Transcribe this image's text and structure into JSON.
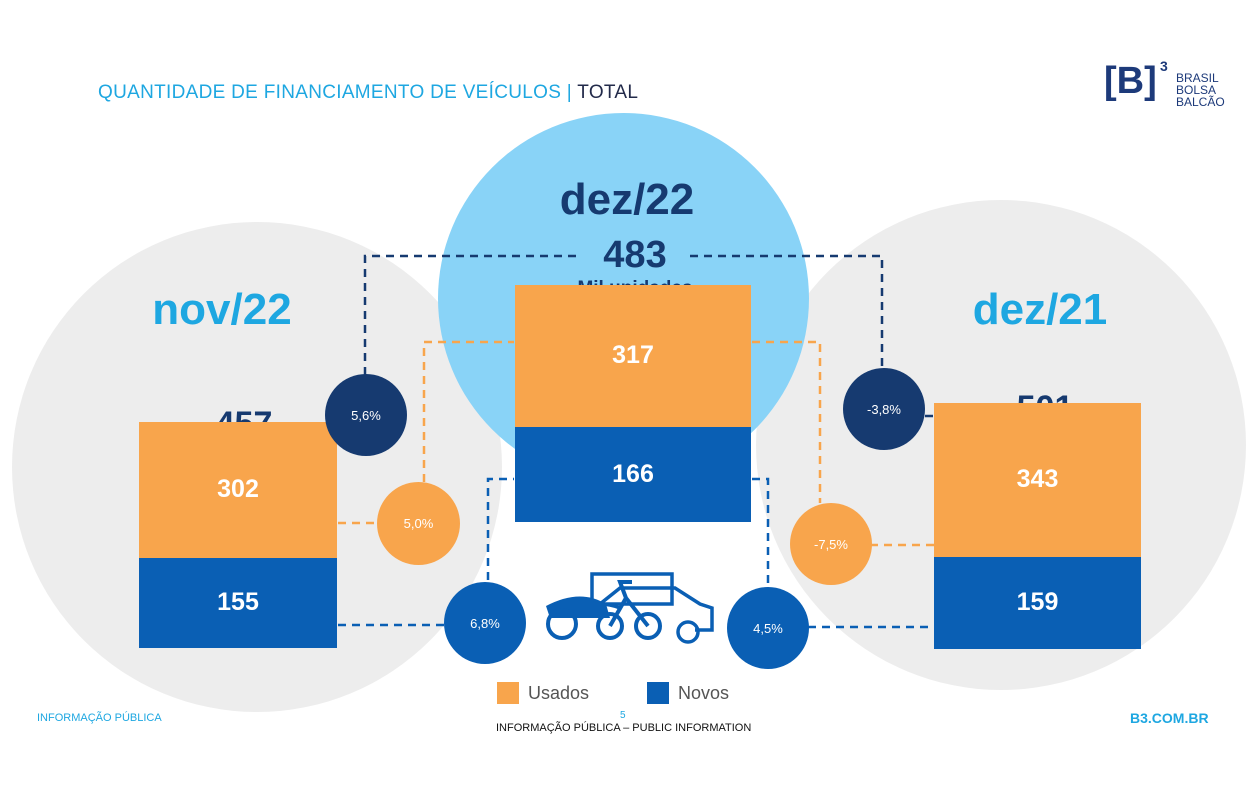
{
  "title": {
    "main": "QUANTIDADE DE FINANCIAMENTO DE VEÍCULOS |",
    "sub": " TOTAL"
  },
  "logo": {
    "mark": "[B]",
    "sup": "3",
    "line1": "BRASIL",
    "line2": "BOLSA",
    "line3": "BALCÃO"
  },
  "colors": {
    "usados": "#f8a54c",
    "novos": "#0a5fb4",
    "dark": "#163a70",
    "light_blue": "#89d3f7",
    "gray": "#ededed",
    "accent": "#1ea7e1"
  },
  "chart_data": {
    "type": "bar",
    "stacked": true,
    "categories": [
      "nov/22",
      "dez/22",
      "dez/21"
    ],
    "series": [
      {
        "name": "Usados",
        "values": [
          302,
          317,
          343
        ]
      },
      {
        "name": "Novos",
        "values": [
          155,
          166,
          159
        ]
      }
    ],
    "totals": [
      457,
      483,
      501
    ],
    "unit_label": "Mil unidades",
    "variations": {
      "total_vs_nov22": "5,6%",
      "usados_vs_nov22": "5,0%",
      "novos_vs_nov22": "6,8%",
      "total_vs_dez21": "-3,8%",
      "usados_vs_dez21": "-7,5%",
      "novos_vs_dez21": "4,5%"
    },
    "legend": [
      "Usados",
      "Novos"
    ],
    "legend_position": "bottom-center"
  },
  "labels": {
    "nov22": "nov/22",
    "dez22": "dez/22",
    "dez21": "dez/21",
    "total_nov22": "457",
    "total_dez22": "483",
    "total_dez21": "501",
    "unit": "Mil unidades"
  },
  "footer": {
    "left": "INFORMAÇÃO PÚBLICA",
    "page": "5",
    "center": "INFORMAÇÃO PÚBLICA – PUBLIC INFORMATION",
    "right": "B3.COM.BR"
  },
  "icons": {
    "vehicles": "vehicles-icon"
  }
}
